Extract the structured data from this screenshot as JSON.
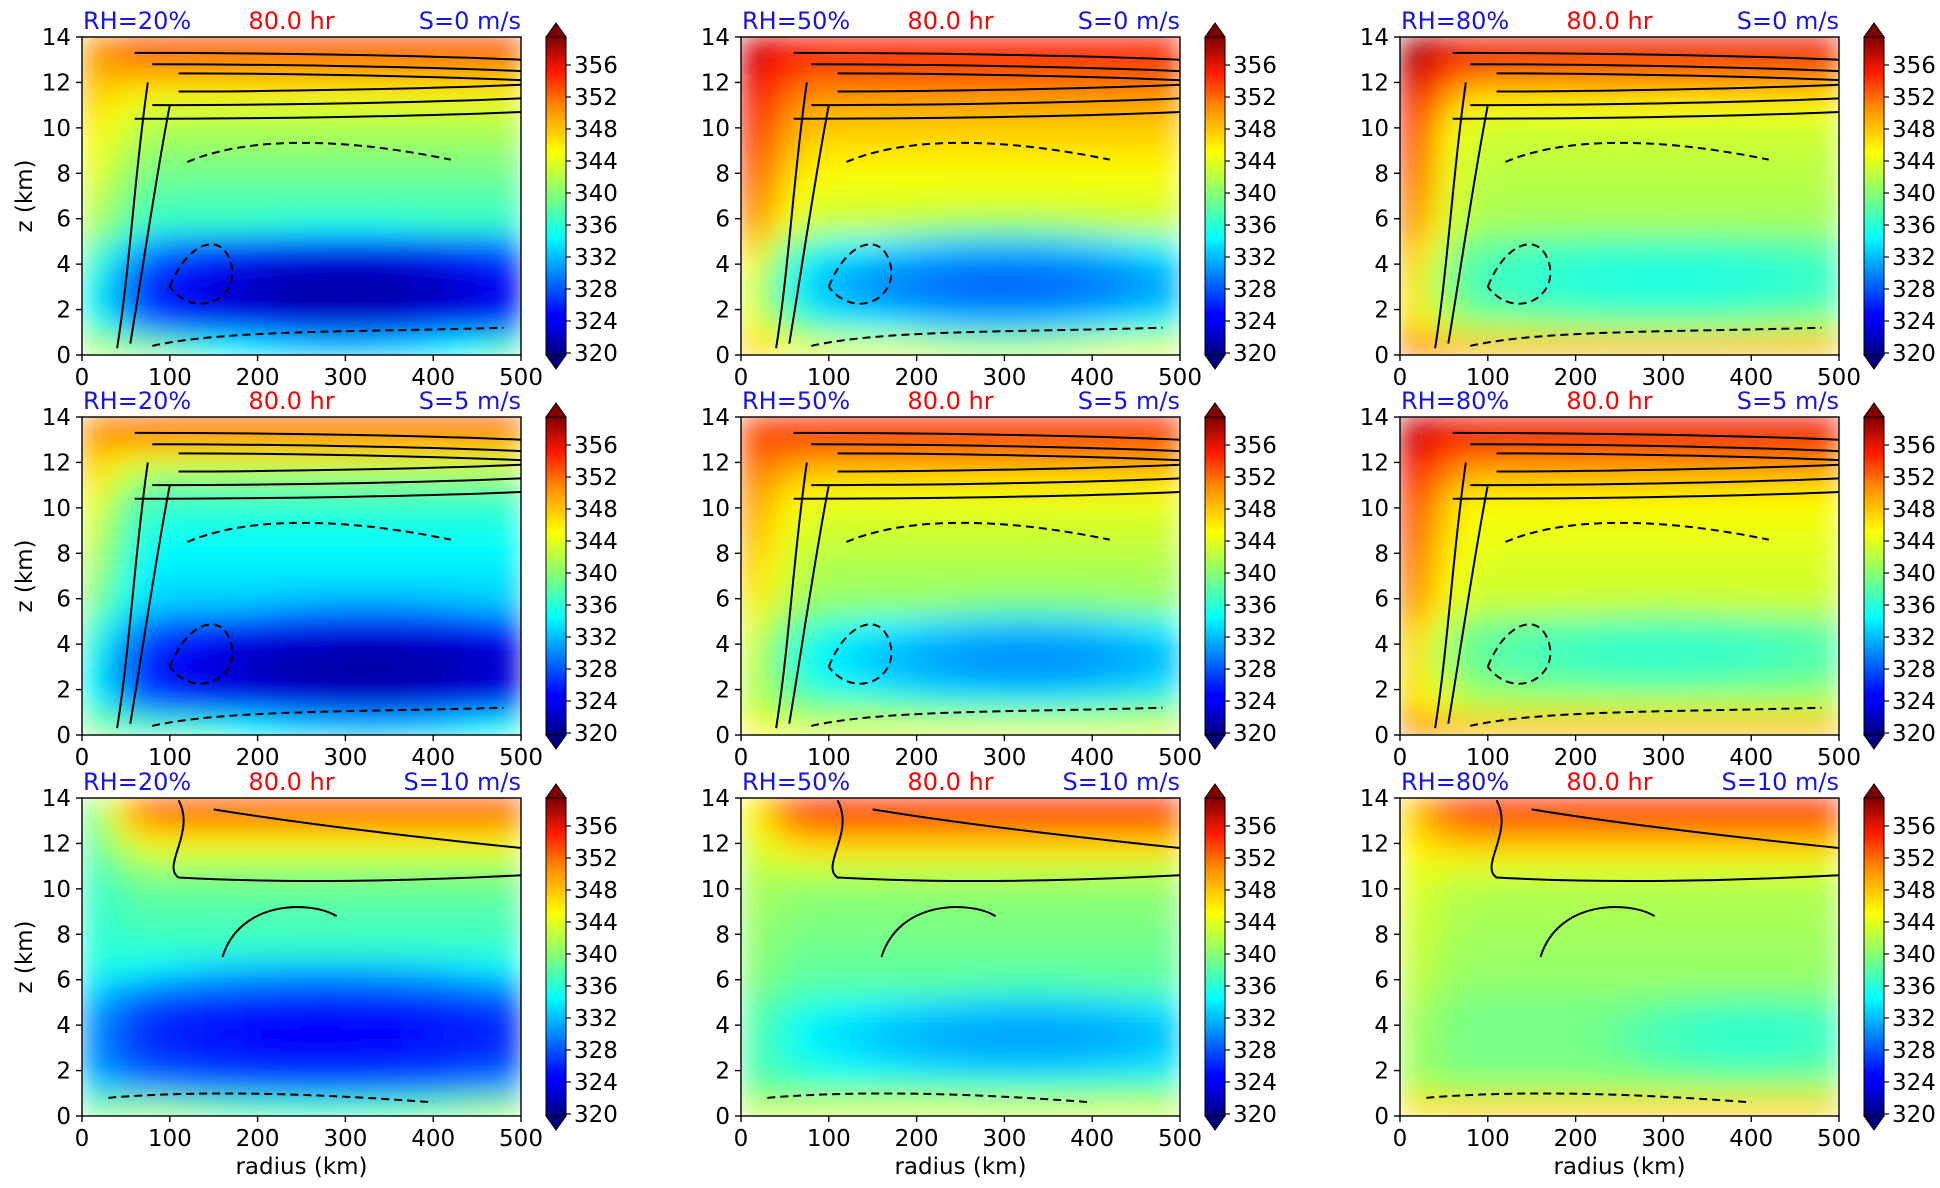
{
  "figure": {
    "time_label": "80.0 hr",
    "rh_labels": [
      "RH=20%",
      "RH=50%",
      "RH=80%"
    ],
    "shear_labels": [
      "S=0 m/s",
      "S=5 m/s",
      "S=10 m/s"
    ],
    "xlabel": "radius (km)",
    "ylabel": "z (km)",
    "xticks": [
      "0",
      "100",
      "200",
      "300",
      "400",
      "500"
    ],
    "yticks": [
      "0",
      "2",
      "4",
      "6",
      "8",
      "10",
      "12",
      "14"
    ],
    "colorbar_ticks": [
      "320",
      "324",
      "328",
      "332",
      "336",
      "340",
      "344",
      "348",
      "352",
      "356"
    ],
    "colors": {
      "rh_label": "#1515e6",
      "time_label": "#ff0000",
      "shear_label": "#1515e6",
      "colormap": "jet",
      "contour_line": "#000000"
    }
  },
  "chart_data": [
    {
      "type": "heatmap",
      "rh": "20%",
      "shear": "0 m/s",
      "field_range": [
        320,
        358
      ],
      "xlim": [
        0,
        500
      ],
      "ylim": [
        0,
        14
      ],
      "core_min": {
        "r_km": [
          150,
          500
        ],
        "z_km": [
          1,
          5
        ],
        "value": 322
      }
    },
    {
      "type": "heatmap",
      "rh": "50%",
      "shear": "0 m/s",
      "field_range": [
        320,
        358
      ],
      "xlim": [
        0,
        500
      ],
      "ylim": [
        0,
        14
      ],
      "core_min": {
        "r_km": [
          150,
          500
        ],
        "z_km": [
          1.5,
          5
        ],
        "value": 329
      }
    },
    {
      "type": "heatmap",
      "rh": "80%",
      "shear": "0 m/s",
      "field_range": [
        320,
        358
      ],
      "xlim": [
        0,
        500
      ],
      "ylim": [
        0,
        14
      ],
      "core_min": {
        "r_km": [
          200,
          500
        ],
        "z_km": [
          2,
          5
        ],
        "value": 334
      }
    },
    {
      "type": "heatmap",
      "rh": "20%",
      "shear": "5 m/s",
      "field_range": [
        320,
        358
      ],
      "xlim": [
        0,
        500
      ],
      "ylim": [
        0,
        14
      ],
      "core_min": {
        "r_km": [
          180,
          500
        ],
        "z_km": [
          1.5,
          5
        ],
        "value": 322
      }
    },
    {
      "type": "heatmap",
      "rh": "50%",
      "shear": "5 m/s",
      "field_range": [
        320,
        358
      ],
      "xlim": [
        0,
        500
      ],
      "ylim": [
        0,
        14
      ],
      "core_min": {
        "r_km": [
          150,
          500
        ],
        "z_km": [
          2,
          5
        ],
        "value": 330
      }
    },
    {
      "type": "heatmap",
      "rh": "80%",
      "shear": "5 m/s",
      "field_range": [
        320,
        358
      ],
      "xlim": [
        0,
        500
      ],
      "ylim": [
        0,
        14
      ],
      "core_min": {
        "r_km": [
          150,
          500
        ],
        "z_km": [
          2,
          5
        ],
        "value": 335
      }
    },
    {
      "type": "heatmap",
      "rh": "20%",
      "shear": "10 m/s",
      "field_range": [
        320,
        358
      ],
      "xlim": [
        0,
        500
      ],
      "ylim": [
        0,
        14
      ],
      "core_min": {
        "r_km": [
          0,
          500
        ],
        "z_km": [
          1.5,
          6
        ],
        "value": 325
      }
    },
    {
      "type": "heatmap",
      "rh": "50%",
      "shear": "10 m/s",
      "field_range": [
        320,
        358
      ],
      "xlim": [
        0,
        500
      ],
      "ylim": [
        0,
        14
      ],
      "core_min": {
        "r_km": [
          200,
          500
        ],
        "z_km": [
          2,
          5
        ],
        "value": 331
      }
    },
    {
      "type": "heatmap",
      "rh": "80%",
      "shear": "10 m/s",
      "field_range": [
        320,
        358
      ],
      "xlim": [
        0,
        500
      ],
      "ylim": [
        0,
        14
      ],
      "core_min": {
        "r_km": [
          350,
          500
        ],
        "z_km": [
          2.5,
          4.5
        ],
        "value": 335
      }
    }
  ]
}
